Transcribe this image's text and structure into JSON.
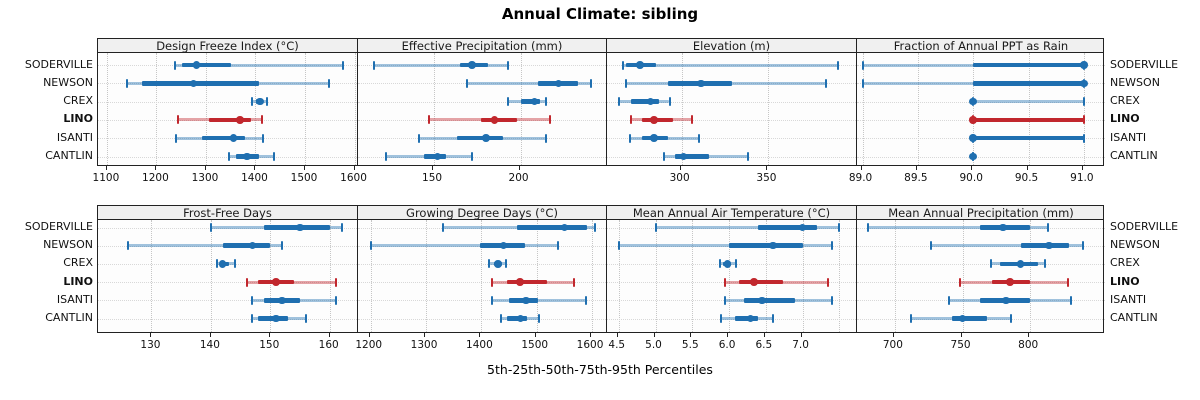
{
  "title": "Annual Climate: sibling",
  "xlabel": "5th-25th-50th-75th-95th Percentiles",
  "sites": [
    "SODERVILLE",
    "NEWSON",
    "CREX",
    "LINO",
    "ISANTI",
    "CANTLIN"
  ],
  "highlight_site": "LINO",
  "colors": {
    "blue": "#1f6fb0",
    "red": "#c1272d",
    "strip_bg": "#f0f0f0",
    "panel_border": "#222222",
    "grid": "#c6c6c6"
  },
  "chart_data": {
    "type": "trellis-percentile-intervals",
    "note": "horizontal interval plot: thin band = 5th-95th, thick band = 25th-75th, dot = 50th percentile",
    "percentile_labels": [
      "5th",
      "25th",
      "50th",
      "75th",
      "95th"
    ],
    "rows": 2,
    "cols": 4,
    "panels": [
      {
        "title": "Design Freeze Index (°C)",
        "row": 0,
        "col": 0,
        "axis": {
          "min": 1082,
          "max": 1605,
          "ticks": [
            1100,
            1200,
            1300,
            1400,
            1500,
            1600
          ],
          "decimals": 0
        },
        "series": {
          "SODERVILLE": [
            1237,
            1252,
            1281,
            1350,
            1577
          ],
          "NEWSON": [
            1140,
            1170,
            1275,
            1408,
            1549
          ],
          "CREX": [
            1393,
            1401,
            1409,
            1416,
            1424
          ],
          "LINO": [
            1244,
            1307,
            1369,
            1391,
            1414
          ],
          "ISANTI": [
            1240,
            1292,
            1356,
            1378,
            1415
          ],
          "CANTLIN": [
            1347,
            1361,
            1383,
            1408,
            1438
          ]
        }
      },
      {
        "title": "Effective Precipitation (mm)",
        "row": 0,
        "col": 1,
        "axis": {
          "min": 106,
          "max": 250,
          "ticks": [
            150,
            200
          ],
          "decimals": 0
        },
        "series": {
          "SODERVILLE": [
            115,
            165,
            172,
            181,
            193
          ],
          "NEWSON": [
            169,
            210,
            222,
            233,
            241
          ],
          "CREX": [
            193,
            200,
            208,
            211,
            215
          ],
          "LINO": [
            147,
            177,
            185,
            198,
            217
          ],
          "ISANTI": [
            141,
            163,
            180,
            190,
            215
          ],
          "CANTLIN": [
            122,
            144,
            152,
            157,
            172
          ]
        }
      },
      {
        "title": "Elevation (m)",
        "row": 0,
        "col": 2,
        "axis": {
          "min": 257,
          "max": 401,
          "ticks": [
            300,
            350
          ],
          "decimals": 0
        },
        "series": {
          "SODERVILLE": [
            266,
            268,
            276,
            285,
            390
          ],
          "NEWSON": [
            268,
            292,
            311,
            329,
            383
          ],
          "CREX": [
            264,
            271,
            282,
            287,
            293
          ],
          "LINO": [
            271,
            277,
            284,
            295,
            306
          ],
          "ISANTI": [
            270,
            277,
            284,
            292,
            310
          ],
          "CANTLIN": [
            290,
            296,
            301,
            316,
            338
          ]
        }
      },
      {
        "title": "Fraction of Annual PPT as Rain",
        "row": 0,
        "col": 3,
        "axis": {
          "min": 88.95,
          "max": 91.2,
          "ticks": [
            89.0,
            89.5,
            90.0,
            90.5,
            91.0
          ],
          "decimals": 1
        },
        "series": {
          "SODERVILLE": [
            89,
            90,
            91,
            91,
            91
          ],
          "NEWSON": [
            89,
            90,
            91,
            91,
            91
          ],
          "CREX": [
            90,
            90,
            90,
            90,
            91
          ],
          "LINO": [
            90,
            90,
            90,
            91,
            91
          ],
          "ISANTI": [
            90,
            90,
            90,
            91,
            91
          ],
          "CANTLIN": [
            90,
            90,
            90,
            90,
            90
          ]
        }
      },
      {
        "title": "Frost-Free Days",
        "row": 1,
        "col": 0,
        "axis": {
          "min": 121,
          "max": 164.6,
          "ticks": [
            130,
            140,
            150,
            160
          ],
          "decimals": 0
        },
        "series": {
          "SODERVILLE": [
            140,
            149,
            155,
            160,
            162
          ],
          "NEWSON": [
            126,
            142,
            147,
            150,
            152
          ],
          "CREX": [
            141,
            141.5,
            142,
            143,
            144
          ],
          "LINO": [
            146,
            148,
            151,
            154,
            161
          ],
          "ISANTI": [
            147,
            149,
            152,
            155,
            161
          ],
          "CANTLIN": [
            147,
            148,
            151,
            153,
            156
          ]
        }
      },
      {
        "title": "Growing Degree Days (°C)",
        "row": 1,
        "col": 1,
        "axis": {
          "min": 1177,
          "max": 1627,
          "ticks": [
            1200,
            1300,
            1400,
            1500,
            1600
          ],
          "decimals": 0
        },
        "series": {
          "SODERVILLE": [
            1330,
            1465,
            1550,
            1590,
            1605
          ],
          "NEWSON": [
            1200,
            1398,
            1440,
            1479,
            1538
          ],
          "CREX": [
            1414,
            1423,
            1430,
            1438,
            1445
          ],
          "LINO": [
            1420,
            1446,
            1470,
            1518,
            1568
          ],
          "ISANTI": [
            1420,
            1449,
            1481,
            1503,
            1589
          ],
          "CANTLIN": [
            1435,
            1446,
            1471,
            1482,
            1505
          ]
        }
      },
      {
        "title": "Mean Annual Air Temperature (°C)",
        "row": 1,
        "col": 2,
        "axis": {
          "min": 4.34,
          "max": 7.74,
          "ticks": [
            4.5,
            5.0,
            5.5,
            6.0,
            6.5,
            7.0
          ],
          "extra_gridlines": [
            7.5
          ],
          "decimals": 1
        },
        "series": {
          "SODERVILLE": [
            5.0,
            6.4,
            7.0,
            7.2,
            7.5
          ],
          "NEWSON": [
            4.5,
            6.0,
            6.6,
            7.0,
            7.4
          ],
          "CREX": [
            5.88,
            5.92,
            5.98,
            6.02,
            6.09
          ],
          "LINO": [
            5.95,
            6.13,
            6.34,
            6.74,
            7.35
          ],
          "ISANTI": [
            5.95,
            6.2,
            6.45,
            6.9,
            7.4
          ],
          "CANTLIN": [
            5.89,
            6.08,
            6.29,
            6.4,
            6.6
          ]
        }
      },
      {
        "title": "Mean Annual Precipitation (mm)",
        "row": 1,
        "col": 3,
        "axis": {
          "min": 672,
          "max": 856,
          "ticks": [
            700,
            750,
            800
          ],
          "decimals": 0
        },
        "series": {
          "SODERVILLE": [
            680,
            763,
            780,
            800,
            813
          ],
          "NEWSON": [
            727,
            793,
            814,
            829,
            839
          ],
          "CREX": [
            771,
            778,
            793,
            806,
            811
          ],
          "LINO": [
            748,
            772,
            785,
            800,
            828
          ],
          "ISANTI": [
            740,
            763,
            782,
            800,
            830
          ],
          "CANTLIN": [
            712,
            742,
            750,
            768,
            786
          ]
        }
      }
    ]
  }
}
